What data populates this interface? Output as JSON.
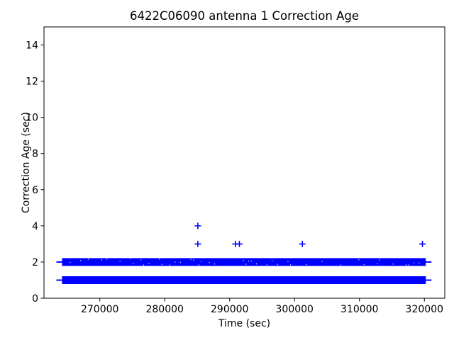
{
  "figure": {
    "background": "#ffffff",
    "frame_color": "#000000",
    "text_color": "#000000"
  },
  "chart_data": {
    "type": "scatter",
    "title": "6422C06090 antenna 1 Correction Age",
    "xlabel": "Time (sec)",
    "ylabel": "Correction Age (sec)",
    "marker": "+",
    "marker_color": "#0000ff",
    "grid": false,
    "legend": "none",
    "xlim": [
      261400,
      323140
    ],
    "ylim": [
      0,
      15
    ],
    "xticks": [
      270000,
      280000,
      290000,
      300000,
      310000,
      320000
    ],
    "yticks": [
      0,
      2,
      4,
      6,
      8,
      10,
      12,
      14
    ],
    "series": [
      {
        "name": "correction_age",
        "dense_bands": [
          {
            "y": 1,
            "x_start": 263800,
            "x_end": 320600,
            "texture": "solid"
          },
          {
            "y": 2,
            "x_start": 263800,
            "x_end": 320600,
            "texture": "speckled"
          }
        ],
        "outlier_points": [
          {
            "x": 285100,
            "y": 3
          },
          {
            "x": 285100,
            "y": 4
          },
          {
            "x": 290900,
            "y": 3
          },
          {
            "x": 291500,
            "y": 3
          },
          {
            "x": 301200,
            "y": 3
          },
          {
            "x": 319700,
            "y": 3
          }
        ]
      }
    ]
  }
}
